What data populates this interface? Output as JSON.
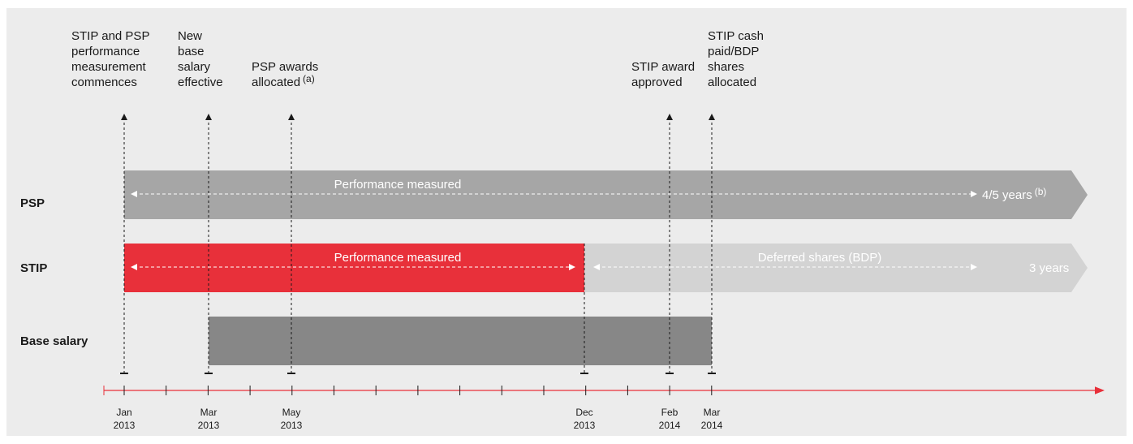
{
  "milestones": [
    {
      "label": [
        "STIP and PSP",
        "performance",
        "measurement",
        "commences"
      ]
    },
    {
      "label": [
        "New",
        "base",
        "salary",
        "effective"
      ]
    },
    {
      "label": [
        "PSP awards",
        "allocated"
      ],
      "note": "(a)"
    },
    {
      "label": [
        "STIP award",
        "approved"
      ]
    },
    {
      "label": [
        "STIP cash",
        "paid/BDP",
        "shares",
        "allocated"
      ]
    }
  ],
  "rows": {
    "psp": {
      "name": "PSP",
      "measured": "Performance measured",
      "duration": "4/5 years",
      "note": "(b)"
    },
    "stip": {
      "name": "STIP",
      "measured": "Performance measured",
      "deferred": "Deferred shares (BDP)",
      "duration": "3  years"
    },
    "base": {
      "name": "Base salary"
    }
  },
  "timeline": [
    {
      "month": "Jan",
      "year": "2013"
    },
    {
      "month": "Mar",
      "year": "2013"
    },
    {
      "month": "May",
      "year": "2013"
    },
    {
      "month": "Dec",
      "year": "2013"
    },
    {
      "month": "Feb",
      "year": "2014"
    },
    {
      "month": "Mar",
      "year": "2014"
    }
  ]
}
